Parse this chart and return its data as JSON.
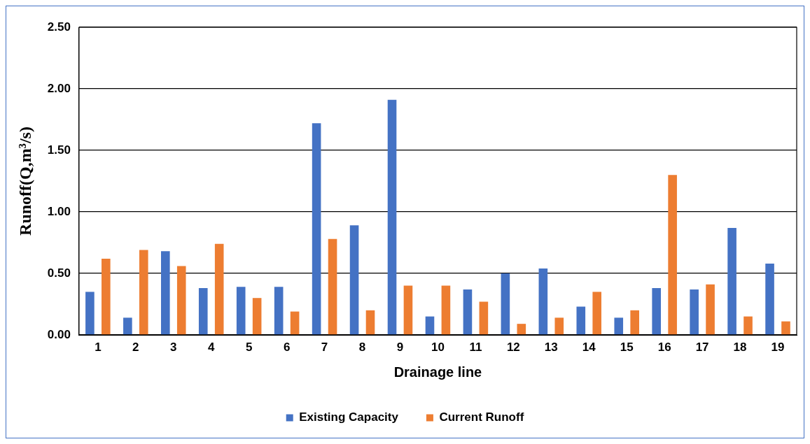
{
  "chart_data": {
    "type": "bar",
    "xlabel": "Drainage line",
    "ylabel": "Runoff(Q,m³/s)",
    "categories": [
      "1",
      "2",
      "3",
      "4",
      "5",
      "6",
      "7",
      "8",
      "9",
      "10",
      "11",
      "12",
      "13",
      "14",
      "15",
      "16",
      "17",
      "18",
      "19"
    ],
    "series": [
      {
        "name": "Existing Capacity",
        "color": "#4472c4",
        "values": [
          0.35,
          0.14,
          0.68,
          0.38,
          0.39,
          0.39,
          1.72,
          0.89,
          1.91,
          0.15,
          0.37,
          0.5,
          0.54,
          0.23,
          0.14,
          0.38,
          0.37,
          0.87,
          0.58
        ]
      },
      {
        "name": "Current Runoff",
        "color": "#ed7d31",
        "values": [
          0.62,
          0.69,
          0.56,
          0.74,
          0.3,
          0.19,
          0.78,
          0.2,
          0.4,
          0.4,
          0.27,
          0.09,
          0.14,
          0.35,
          0.2,
          1.3,
          0.41,
          0.15,
          0.11
        ]
      }
    ],
    "ylim": [
      0,
      2.5
    ],
    "yticks": [
      {
        "value": 0,
        "label": "0.00"
      },
      {
        "value": 0.5,
        "label": "0.50"
      },
      {
        "value": 1,
        "label": "1.00"
      },
      {
        "value": 1.5,
        "label": "1.50"
      },
      {
        "value": 2,
        "label": "2.00"
      },
      {
        "value": 2.5,
        "label": "2.50"
      }
    ],
    "grid": "y",
    "legend": "bottom"
  }
}
